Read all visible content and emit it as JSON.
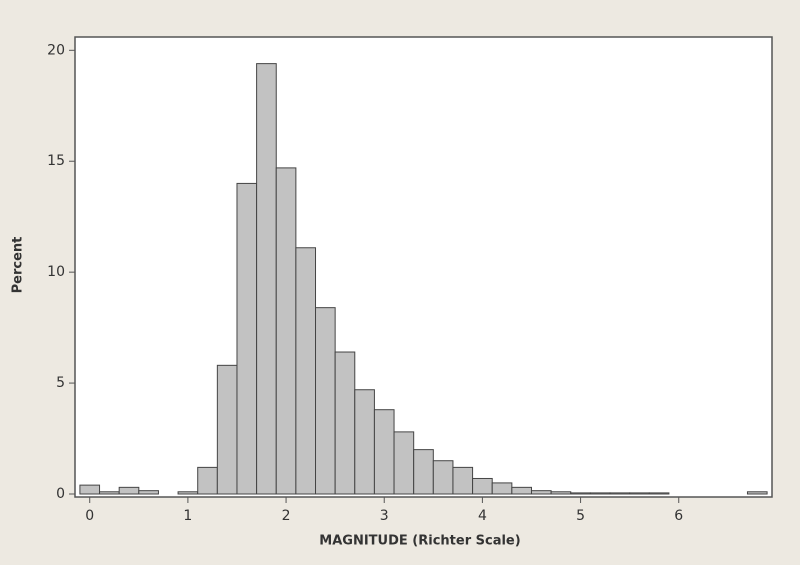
{
  "chart_data": {
    "type": "histogram",
    "x_label": "MAGNITUDE (Richter Scale)",
    "y_label": "Percent",
    "bins": [
      -0.1,
      0.1,
      0.3,
      0.5,
      0.7,
      0.9,
      1.1,
      1.3,
      1.5,
      1.7,
      1.9,
      2.1,
      2.3,
      2.5,
      2.7,
      2.9,
      3.1,
      3.3,
      3.5,
      3.7,
      3.9,
      4.1,
      4.3,
      4.5,
      4.7,
      4.9,
      5.1,
      5.3,
      5.5,
      5.7,
      5.9,
      6.1,
      6.3,
      6.5,
      6.7,
      6.9
    ],
    "values": [
      0.4,
      0.1,
      0.3,
      0.15,
      0,
      0.1,
      1.2,
      5.8,
      14.0,
      19.4,
      14.7,
      11.1,
      8.4,
      6.4,
      4.7,
      3.8,
      2.8,
      2.0,
      1.5,
      1.2,
      0.7,
      0.5,
      0.3,
      0.15,
      0.1,
      0.05,
      0.05,
      0.05,
      0.05,
      0.05,
      0,
      0,
      0,
      0,
      0.1
    ],
    "color": "#c2c2c2",
    "xlim": [
      -0.15,
      6.95
    ],
    "xticks": [
      0,
      1,
      2,
      3,
      4,
      5,
      6
    ],
    "ylim": [
      0,
      20.6
    ],
    "yticks": [
      0,
      5,
      10,
      15,
      20
    ]
  }
}
